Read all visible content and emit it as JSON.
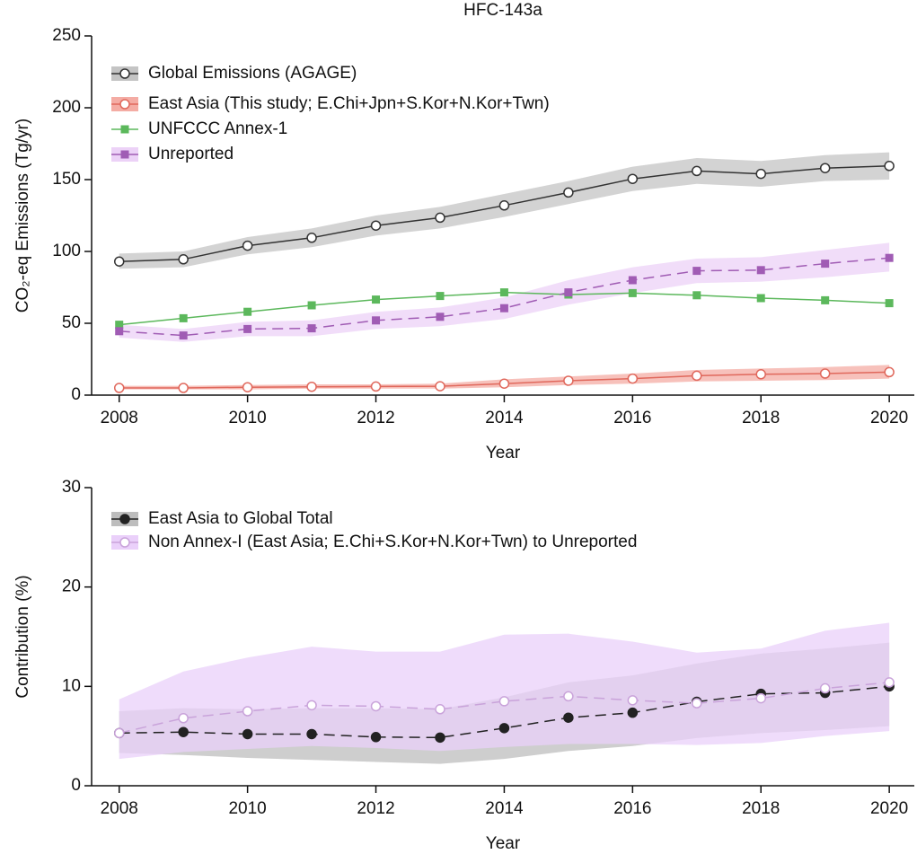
{
  "chart_data": [
    {
      "type": "line",
      "title": "HFC-143a",
      "xlabel": "Year",
      "ylabel": "CO₂-eq Emissions (Tg/yr)",
      "x": [
        2008,
        2009,
        2010,
        2011,
        2012,
        2013,
        2014,
        2015,
        2016,
        2017,
        2018,
        2019,
        2020
      ],
      "xlim": [
        2007.57,
        2020.39
      ],
      "xticks": [
        2008,
        2010,
        2012,
        2014,
        2016,
        2018,
        2020
      ],
      "ylim": [
        0,
        250
      ],
      "yticks": [
        0,
        50,
        100,
        150,
        200,
        250
      ],
      "series": [
        {
          "name": "Global Emissions (AGAGE)",
          "color": "#333333",
          "band_color": "#c4c4c4",
          "marker": "open-circle",
          "dashed": false,
          "values": [
            93,
            94.5,
            104,
            109.5,
            118,
            123.5,
            132,
            141,
            150.5,
            156,
            154,
            158,
            159.5
          ],
          "lower": [
            88,
            89,
            98,
            103,
            111,
            116,
            124,
            133,
            142,
            147,
            145,
            149,
            150
          ],
          "upper": [
            98.5,
            100,
            110,
            116,
            125,
            131,
            140,
            149,
            159,
            165,
            163,
            167,
            169
          ]
        },
        {
          "name": "East Asia (This study; E.Chi+Jpn+S.Kor+N.Kor+Twn)",
          "color": "#e0685c",
          "band_color": "#f4aca4",
          "marker": "open-circle",
          "dashed": false,
          "values": [
            5,
            5,
            5.5,
            5.8,
            6,
            6.2,
            8,
            10,
            11.5,
            13.5,
            14.5,
            15,
            16
          ],
          "lower": [
            4,
            4,
            4,
            4.5,
            4.5,
            4.5,
            5.5,
            7,
            8,
            9.5,
            10,
            10.5,
            11.5
          ],
          "upper": [
            6.5,
            6.5,
            7,
            7.5,
            7.5,
            8,
            11,
            13,
            15,
            17.5,
            18.5,
            19.5,
            21
          ]
        },
        {
          "name": "UNFCCC Annex-1",
          "color": "#5cb85c",
          "marker": "square",
          "dashed": false,
          "values": [
            49,
            53.5,
            58,
            62.5,
            66.5,
            69,
            71.5,
            70,
            71,
            69.5,
            67.5,
            66,
            64
          ]
        },
        {
          "name": "Unreported",
          "color": "#a05cb4",
          "band_color": "#ecd2f7",
          "marker": "square",
          "dashed": true,
          "values": [
            44.5,
            41.5,
            46,
            46.5,
            52,
            54.5,
            60.5,
            71.5,
            80,
            86.5,
            87,
            91.5,
            95.5
          ],
          "lower": [
            40,
            37,
            41,
            41,
            46,
            48,
            53,
            63,
            71,
            78,
            79,
            82,
            86
          ],
          "upper": [
            49,
            46,
            51,
            52,
            58,
            61,
            68,
            80,
            89,
            95,
            96,
            101,
            106
          ]
        }
      ]
    },
    {
      "type": "line",
      "xlabel": "Year",
      "ylabel": "Contribution (%)",
      "x": [
        2008,
        2009,
        2010,
        2011,
        2012,
        2013,
        2014,
        2015,
        2016,
        2017,
        2018,
        2019,
        2020
      ],
      "xlim": [
        2007.57,
        2020.39
      ],
      "xticks": [
        2008,
        2010,
        2012,
        2014,
        2016,
        2018,
        2020
      ],
      "ylim": [
        0,
        30
      ],
      "yticks": [
        0,
        10,
        20,
        30
      ],
      "series": [
        {
          "name": "East Asia to Global Total",
          "color": "#222222",
          "band_color": "#bdbdbd",
          "marker": "filled-circle",
          "dashed": true,
          "values": [
            5.3,
            5.4,
            5.2,
            5.2,
            4.9,
            4.85,
            5.8,
            6.85,
            7.35,
            8.45,
            9.25,
            9.35,
            10
          ],
          "lower": [
            3.3,
            3.1,
            2.8,
            2.6,
            2.4,
            2.2,
            2.7,
            3.5,
            4,
            4.8,
            5.3,
            5.6,
            6
          ],
          "upper": [
            7.5,
            7.8,
            7.7,
            7.8,
            7.8,
            7.7,
            8.9,
            10.4,
            11.1,
            12.3,
            13.3,
            13.8,
            14.4
          ]
        },
        {
          "name": "Non Annex-I (East Asia; E.Chi+S.Kor+N.Kor+Twn) to Unreported",
          "color": "#c9a3da",
          "band_color": "#ead0fa",
          "marker": "open-circle",
          "dashed": true,
          "values": [
            5.3,
            6.8,
            7.5,
            8.1,
            8,
            7.7,
            8.5,
            9,
            8.6,
            8.3,
            8.8,
            9.8,
            10.4
          ],
          "lower": [
            2.7,
            3.4,
            3.7,
            4,
            3.8,
            3.5,
            3.9,
            4.2,
            4.2,
            4.1,
            4.3,
            5,
            5.5
          ],
          "upper": [
            8.7,
            11.5,
            12.9,
            14,
            13.5,
            13.5,
            15.2,
            15.3,
            14.5,
            13.4,
            13.8,
            15.6,
            16.4
          ]
        }
      ]
    }
  ]
}
